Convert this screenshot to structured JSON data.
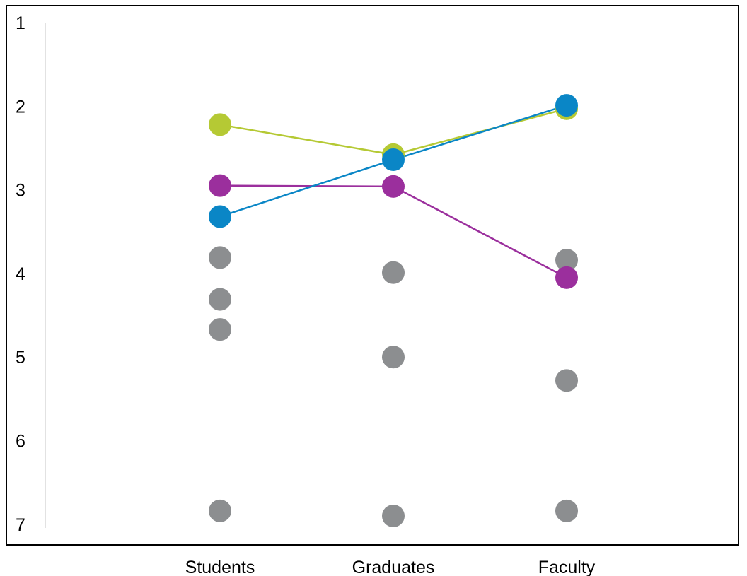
{
  "chart_data": {
    "type": "scatter",
    "title": "",
    "xlabel": "",
    "ylabel": "",
    "categories": [
      "Students",
      "Graduates",
      "Faculty"
    ],
    "y_ticks": [
      "1",
      "2",
      "3",
      "4",
      "5",
      "6",
      "7"
    ],
    "ylim": [
      1,
      7
    ],
    "y_inverted": true,
    "grid": false,
    "highlighted_series": [
      {
        "color": "#b5c934",
        "values": [
          2.22,
          2.58,
          2.03
        ]
      },
      {
        "color": "#9b2f9d",
        "values": [
          2.95,
          2.96,
          4.05
        ]
      },
      {
        "color": "#0a86c6",
        "values": [
          3.32,
          2.64,
          1.99
        ]
      }
    ],
    "other_points": {
      "color": "#8c8e90",
      "values": [
        [
          3.81,
          4.31,
          4.67,
          6.84
        ],
        [
          3.99,
          5.0,
          6.9
        ],
        [
          3.84,
          5.28,
          6.84
        ]
      ]
    }
  }
}
